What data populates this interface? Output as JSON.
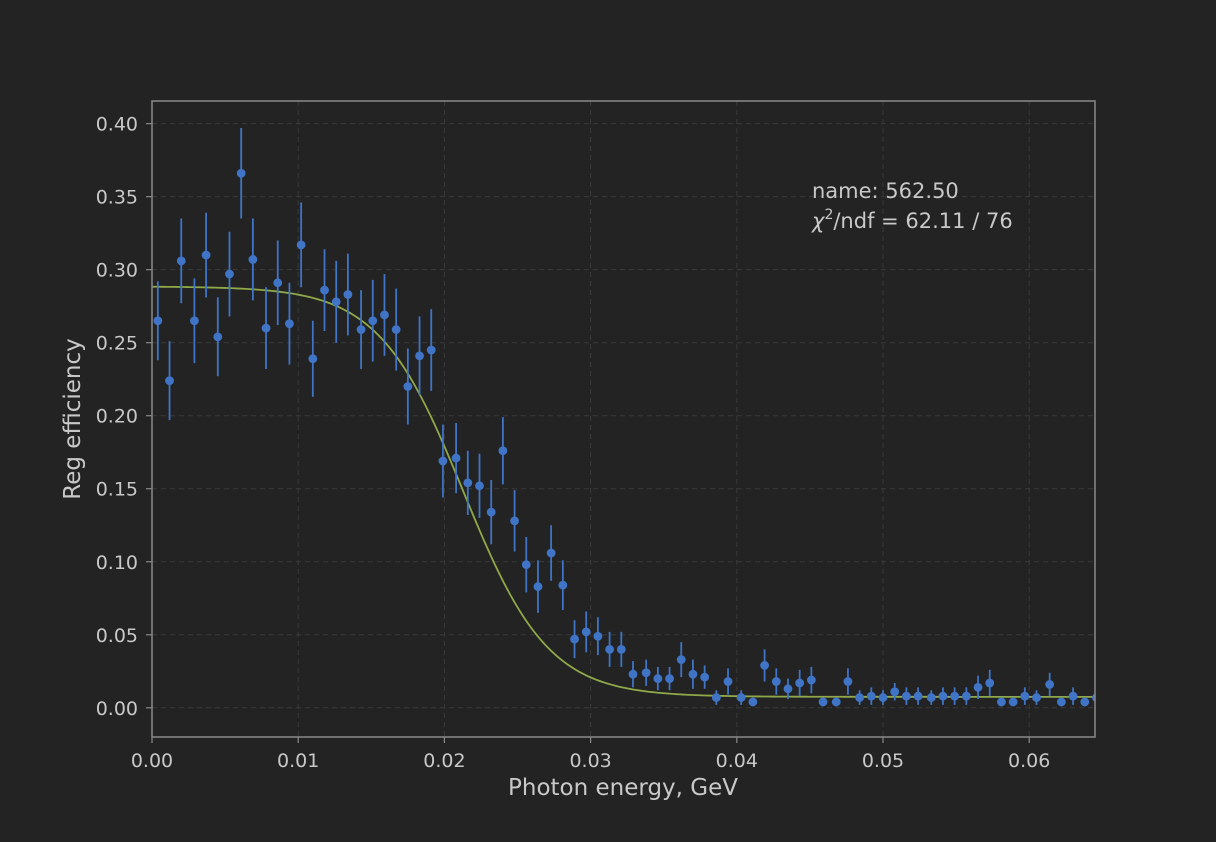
{
  "chart_data": {
    "type": "scatter",
    "xlabel": "Photon energy, GeV",
    "ylabel": "Reg efficiency",
    "xlim": [
      0.0,
      0.0645
    ],
    "ylim": [
      -0.02,
      0.4155
    ],
    "grid": true,
    "xticks": [
      0.0,
      0.01,
      0.02,
      0.03,
      0.04,
      0.05,
      0.06
    ],
    "xtick_labels": [
      "0.00",
      "0.01",
      "0.02",
      "0.03",
      "0.04",
      "0.05",
      "0.06"
    ],
    "yticks": [
      0.0,
      0.05,
      0.1,
      0.15,
      0.2,
      0.25,
      0.3,
      0.35,
      0.4
    ],
    "ytick_labels": [
      "0.00",
      "0.05",
      "0.10",
      "0.15",
      "0.20",
      "0.25",
      "0.30",
      "0.35",
      "0.40"
    ],
    "annotation": {
      "name_line": "name: 562.50",
      "chi_symbol": "χ",
      "chi_sup": "2",
      "chi_rest": "/ndf = 62.11 / 76"
    },
    "colors": {
      "points": "#3f74c6",
      "fit": "#8fa84a",
      "frame": "#8a8a8a",
      "grid": "#3a3a3a"
    },
    "series": [
      {
        "kind": "errorbar",
        "x": [
          0.0004,
          0.0012,
          0.002,
          0.0029,
          0.0037,
          0.0045,
          0.0053,
          0.0061,
          0.0069,
          0.0078,
          0.0086,
          0.0094,
          0.0102,
          0.011,
          0.0118,
          0.0126,
          0.0134,
          0.0143,
          0.0151,
          0.0159,
          0.0167,
          0.0175,
          0.0183,
          0.0191,
          0.0199,
          0.0208,
          0.0216,
          0.0224,
          0.0232,
          0.024,
          0.0248,
          0.0256,
          0.0264,
          0.0273,
          0.0281,
          0.0289,
          0.0297,
          0.0305,
          0.0313,
          0.0321,
          0.0329,
          0.0338,
          0.0346,
          0.0354,
          0.0362,
          0.037,
          0.0378,
          0.0386,
          0.0394,
          0.0403,
          0.0411,
          0.0419,
          0.0427,
          0.0435,
          0.0443,
          0.0451,
          0.0459,
          0.0468,
          0.0476,
          0.0484,
          0.0492,
          0.05,
          0.0508,
          0.0516,
          0.0524,
          0.0533,
          0.0541,
          0.0549,
          0.0557,
          0.0565,
          0.0573,
          0.0581,
          0.0589,
          0.0597,
          0.0605,
          0.0614,
          0.0622,
          0.063,
          0.0638,
          0.0646
        ],
        "y": [
          0.265,
          0.224,
          0.306,
          0.265,
          0.31,
          0.254,
          0.297,
          0.366,
          0.307,
          0.26,
          0.291,
          0.263,
          0.317,
          0.239,
          0.286,
          0.278,
          0.283,
          0.259,
          0.265,
          0.269,
          0.259,
          0.22,
          0.241,
          0.245,
          0.169,
          0.171,
          0.154,
          0.152,
          0.134,
          0.176,
          0.128,
          0.098,
          0.083,
          0.106,
          0.084,
          0.047,
          0.052,
          0.049,
          0.04,
          0.04,
          0.023,
          0.024,
          0.02,
          0.02,
          0.033,
          0.023,
          0.021,
          0.007,
          0.018,
          0.007,
          0.004,
          0.029,
          0.018,
          0.013,
          0.017,
          0.019,
          0.004,
          0.004,
          0.018,
          0.007,
          0.008,
          0.007,
          0.011,
          0.008,
          0.008,
          0.007,
          0.008,
          0.008,
          0.008,
          0.014,
          0.017,
          0.004,
          0.004,
          0.008,
          0.007,
          0.016,
          0.004,
          0.008,
          0.004,
          0.007
        ],
        "yerr": [
          0.027,
          0.027,
          0.029,
          0.029,
          0.029,
          0.027,
          0.029,
          0.031,
          0.028,
          0.028,
          0.029,
          0.028,
          0.029,
          0.026,
          0.028,
          0.028,
          0.028,
          0.027,
          0.028,
          0.028,
          0.028,
          0.026,
          0.027,
          0.028,
          0.025,
          0.024,
          0.022,
          0.022,
          0.022,
          0.023,
          0.021,
          0.019,
          0.018,
          0.019,
          0.017,
          0.013,
          0.014,
          0.013,
          0.012,
          0.012,
          0.009,
          0.009,
          0.008,
          0.008,
          0.012,
          0.01,
          0.008,
          0.005,
          0.009,
          0.005,
          0.003,
          0.011,
          0.009,
          0.007,
          0.009,
          0.009,
          0.003,
          0.003,
          0.009,
          0.005,
          0.006,
          0.005,
          0.006,
          0.006,
          0.006,
          0.005,
          0.006,
          0.006,
          0.006,
          0.008,
          0.009,
          0.003,
          0.003,
          0.006,
          0.005,
          0.008,
          0.003,
          0.006,
          0.003,
          0.005
        ]
      },
      {
        "kind": "fit-curve",
        "model": "sigmoid",
        "params": {
          "amplitude": 0.281,
          "center": 0.0213,
          "width": 0.0029,
          "baseline": 0.0075
        }
      }
    ]
  }
}
